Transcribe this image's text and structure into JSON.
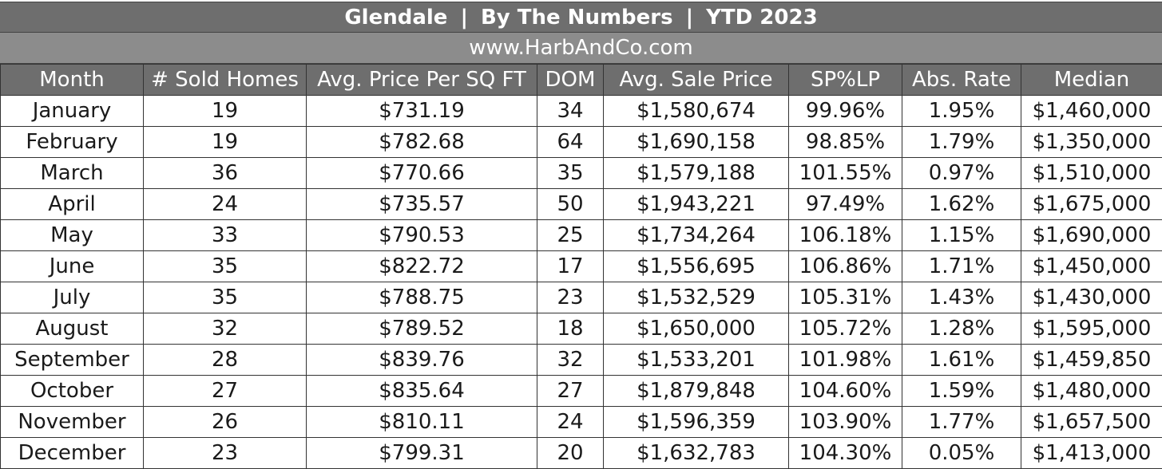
{
  "header": {
    "city": "Glendale",
    "subtitle": "By The Numbers",
    "period": "YTD 2023",
    "separator": "|",
    "website": "www.HarbAndCo.com"
  },
  "table": {
    "columns": [
      "Month",
      "# Sold Homes",
      "Avg. Price Per SQ FT",
      "DOM",
      "Avg. Sale Price",
      "SP%LP",
      "Abs. Rate",
      "Median"
    ],
    "rows": [
      [
        "January",
        "19",
        "$731.19",
        "34",
        "$1,580,674",
        "99.96%",
        "1.95%",
        "$1,460,000"
      ],
      [
        "February",
        "19",
        "$782.68",
        "64",
        "$1,690,158",
        "98.85%",
        "1.79%",
        "$1,350,000"
      ],
      [
        "March",
        "36",
        "$770.66",
        "35",
        "$1,579,188",
        "101.55%",
        "0.97%",
        "$1,510,000"
      ],
      [
        "April",
        "24",
        "$735.57",
        "50",
        "$1,943,221",
        "97.49%",
        "1.62%",
        "$1,675,000"
      ],
      [
        "May",
        "33",
        "$790.53",
        "25",
        "$1,734,264",
        "106.18%",
        "1.15%",
        "$1,690,000"
      ],
      [
        "June",
        "35",
        "$822.72",
        "17",
        "$1,556,695",
        "106.86%",
        "1.71%",
        "$1,450,000"
      ],
      [
        "July",
        "35",
        "$788.75",
        "23",
        "$1,532,529",
        "105.31%",
        "1.43%",
        "$1,430,000"
      ],
      [
        "August",
        "32",
        "$789.52",
        "18",
        "$1,650,000",
        "105.72%",
        "1.28%",
        "$1,595,000"
      ],
      [
        "September",
        "28",
        "$839.76",
        "32",
        "$1,533,201",
        "101.98%",
        "1.61%",
        "$1,459,850"
      ],
      [
        "October",
        "27",
        "$835.64",
        "27",
        "$1,879,848",
        "104.60%",
        "1.59%",
        "$1,480,000"
      ],
      [
        "November",
        "26",
        "$810.11",
        "24",
        "$1,596,359",
        "103.90%",
        "1.77%",
        "$1,657,500"
      ],
      [
        "December",
        "23",
        "$799.31",
        "20",
        "$1,632,783",
        "104.30%",
        "0.05%",
        "$1,413,000"
      ]
    ]
  },
  "colors": {
    "title_bg": "#6e6e6e",
    "url_bg": "#8c8c8c",
    "header_bg": "#6e6e6e",
    "header_text": "#ffffff",
    "cell_text": "#1a1a1a"
  }
}
